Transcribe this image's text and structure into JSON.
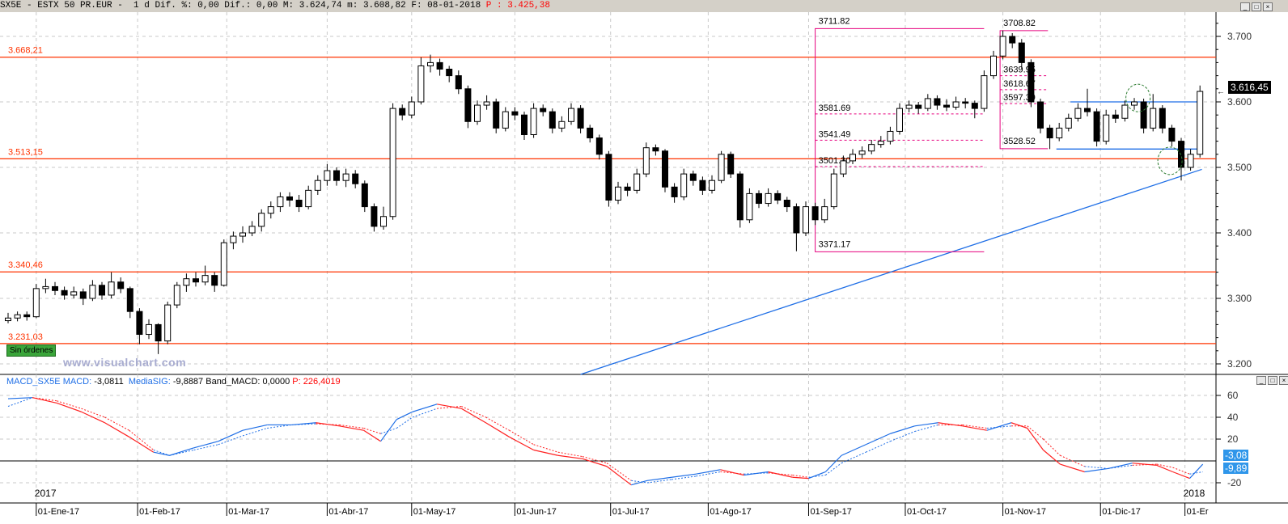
{
  "header": {
    "symbol": "SX5E",
    "sep1": " - ",
    "name": "ESTX 50 PR.EUR",
    "sep2": " -  ",
    "period": "1 d",
    "dif_pct_label": " Dif. %: ",
    "dif_pct": "0,00",
    "dif_label": " Dif.: ",
    "dif": "0,00",
    "max_label": " M: ",
    "max": "3.624,74",
    "min_label": " m: ",
    "min": "3.608,82",
    "date_label": " F: ",
    "date": "08-01-2018",
    "p_label": " P : ",
    "p": "3.425,38"
  },
  "window_controls": [
    "_",
    "□",
    "×"
  ],
  "price_axis": {
    "ticks": [
      3700,
      3600,
      3500,
      3400,
      3300,
      3200
    ],
    "tick_labels": [
      "3.700",
      "3.600",
      "3.500",
      "3.400",
      "3.300",
      "3.200"
    ],
    "range": [
      3180,
      3740
    ],
    "last_price": "3.616,45",
    "last_value": 3616.45
  },
  "levels": [
    {
      "price": 3668.21,
      "label": "3.668,21"
    },
    {
      "price": 3513.15,
      "label": "3.513,15"
    },
    {
      "price": 3340.46,
      "label": "3.340,46"
    },
    {
      "price": 3231.03,
      "label": "3.231,03"
    }
  ],
  "orders_badge": "Sin órdenes",
  "watermark": "www.visualchart.com",
  "date_axis": {
    "labels": [
      {
        "candle": 3,
        "text": "01-Ene-17"
      },
      {
        "candle": 13.8,
        "text": "01-Feb-17"
      },
      {
        "candle": 23.3,
        "text": "01-Mar-17"
      },
      {
        "candle": 34,
        "text": "01-Abr-17"
      },
      {
        "candle": 43,
        "text": "01-May-17"
      },
      {
        "candle": 54,
        "text": "01-Jun-17"
      },
      {
        "candle": 64.2,
        "text": "01-Jul-17"
      },
      {
        "candle": 74.6,
        "text": "01-Ago-17"
      },
      {
        "candle": 85.3,
        "text": "01-Sep-17"
      },
      {
        "candle": 95.6,
        "text": "01-Oct-17"
      },
      {
        "candle": 106,
        "text": "01-Nov-17"
      },
      {
        "candle": 116.4,
        "text": "01-Dic-17"
      },
      {
        "candle": 125.4,
        "text": "01-Er"
      }
    ],
    "years": [
      {
        "candle": 3,
        "text": "2017"
      },
      {
        "candle": 125.4,
        "text": "2018"
      }
    ]
  },
  "fib_boxes": [
    {
      "from": 86,
      "to": 104,
      "color": "#e6007e",
      "top": {
        "price": 3711.82,
        "label": "3711.82"
      },
      "bottom": {
        "price": 3371.17,
        "label": "3371.17"
      },
      "levels": [
        {
          "price": 3581.69,
          "label": "3581.69"
        },
        {
          "price": 3541.49,
          "label": "3541.49"
        },
        {
          "price": 3501.3,
          "label": "3501.30"
        }
      ]
    },
    {
      "from": 105.7,
      "to": 110.8,
      "color": "#e6007e",
      "top": {
        "price": 3708.82,
        "label": "3708.82"
      },
      "bottom": {
        "price": 3528.52,
        "label": "3528.52"
      },
      "levels": [
        {
          "price": 3639.95,
          "label": "3639.95"
        },
        {
          "price": 3618.67,
          "label": "3618.67"
        },
        {
          "price": 3597.39,
          "label": "3597.39"
        }
      ]
    }
  ],
  "trendlines": [
    {
      "from": {
        "candle": 61,
        "price": 3184
      },
      "to": {
        "candle": 127.2,
        "price": 3497
      },
      "color": "#1e6ee6"
    },
    {
      "from": {
        "candle": 113.2,
        "price": 3600
      },
      "to": {
        "candle": 127.2,
        "price": 3600
      },
      "color": "#1e6ee6"
    },
    {
      "from": {
        "candle": 111.7,
        "price": 3528
      },
      "to": {
        "candle": 127.2,
        "price": 3528
      },
      "color": "#1e6ee6"
    }
  ],
  "circles": [
    {
      "candle": 120.4,
      "price": 3606,
      "color": "#2e7d32"
    },
    {
      "candle": 123.8,
      "price": 3510,
      "color": "#2e7d32"
    }
  ],
  "colors": {
    "level": "#ff3300",
    "macd_up": "#1e6ee6",
    "macd_down": "#ff2020",
    "grid": "#c8c8c8"
  },
  "chart_data": [
    {
      "type": "candlestick",
      "title": "SX5E - ESTX 50 PR.EUR",
      "ylim": [
        3180,
        3740
      ],
      "grid": true,
      "candles_ohlc": [
        [
          3266,
          3278,
          3262,
          3270
        ],
        [
          3270,
          3280,
          3265,
          3275
        ],
        [
          3275,
          3280,
          3266,
          3272
        ],
        [
          3272,
          3322,
          3270,
          3315
        ],
        [
          3315,
          3330,
          3308,
          3318
        ],
        [
          3318,
          3325,
          3305,
          3312
        ],
        [
          3312,
          3318,
          3298,
          3305
        ],
        [
          3305,
          3318,
          3300,
          3310
        ],
        [
          3310,
          3315,
          3290,
          3300
        ],
        [
          3300,
          3328,
          3296,
          3320
        ],
        [
          3320,
          3325,
          3298,
          3305
        ],
        [
          3305,
          3340,
          3300,
          3325
        ],
        [
          3325,
          3332,
          3308,
          3315
        ],
        [
          3315,
          3318,
          3270,
          3280
        ],
        [
          3280,
          3285,
          3230,
          3245
        ],
        [
          3245,
          3268,
          3238,
          3260
        ],
        [
          3260,
          3262,
          3215,
          3235
        ],
        [
          3235,
          3295,
          3230,
          3290
        ],
        [
          3290,
          3325,
          3285,
          3320
        ],
        [
          3320,
          3338,
          3310,
          3330
        ],
        [
          3330,
          3340,
          3318,
          3325
        ],
        [
          3325,
          3350,
          3320,
          3335
        ],
        [
          3335,
          3340,
          3310,
          3320
        ],
        [
          3320,
          3390,
          3318,
          3385
        ],
        [
          3385,
          3402,
          3375,
          3395
        ],
        [
          3395,
          3410,
          3385,
          3400
        ],
        [
          3400,
          3418,
          3395,
          3410
        ],
        [
          3410,
          3436,
          3402,
          3430
        ],
        [
          3430,
          3448,
          3422,
          3440
        ],
        [
          3440,
          3462,
          3432,
          3455
        ],
        [
          3455,
          3462,
          3440,
          3450
        ],
        [
          3450,
          3458,
          3432,
          3440
        ],
        [
          3440,
          3472,
          3436,
          3465
        ],
        [
          3465,
          3488,
          3458,
          3480
        ],
        [
          3480,
          3505,
          3472,
          3495
        ],
        [
          3495,
          3500,
          3472,
          3480
        ],
        [
          3480,
          3498,
          3470,
          3490
        ],
        [
          3490,
          3496,
          3468,
          3475
        ],
        [
          3475,
          3480,
          3432,
          3440
        ],
        [
          3440,
          3445,
          3402,
          3410
        ],
        [
          3410,
          3440,
          3405,
          3425
        ],
        [
          3425,
          3598,
          3420,
          3590
        ],
        [
          3590,
          3596,
          3572,
          3580
        ],
        [
          3580,
          3608,
          3575,
          3600
        ],
        [
          3600,
          3668,
          3596,
          3655
        ],
        [
          3655,
          3672,
          3645,
          3660
        ],
        [
          3660,
          3666,
          3640,
          3650
        ],
        [
          3650,
          3655,
          3630,
          3640
        ],
        [
          3640,
          3648,
          3612,
          3620
        ],
        [
          3620,
          3625,
          3560,
          3570
        ],
        [
          3570,
          3602,
          3565,
          3595
        ],
        [
          3595,
          3610,
          3588,
          3600
        ],
        [
          3600,
          3605,
          3552,
          3560
        ],
        [
          3560,
          3592,
          3555,
          3585
        ],
        [
          3585,
          3592,
          3572,
          3580
        ],
        [
          3580,
          3585,
          3542,
          3550
        ],
        [
          3550,
          3598,
          3545,
          3590
        ],
        [
          3590,
          3596,
          3578,
          3585
        ],
        [
          3585,
          3590,
          3552,
          3560
        ],
        [
          3560,
          3578,
          3554,
          3570
        ],
        [
          3570,
          3598,
          3565,
          3590
        ],
        [
          3590,
          3595,
          3552,
          3560
        ],
        [
          3560,
          3565,
          3538,
          3545
        ],
        [
          3545,
          3550,
          3512,
          3520
        ],
        [
          3520,
          3525,
          3440,
          3450
        ],
        [
          3450,
          3478,
          3444,
          3470
        ],
        [
          3470,
          3476,
          3456,
          3465
        ],
        [
          3465,
          3498,
          3460,
          3490
        ],
        [
          3490,
          3538,
          3485,
          3530
        ],
        [
          3530,
          3535,
          3518,
          3525
        ],
        [
          3525,
          3528,
          3462,
          3470
        ],
        [
          3470,
          3476,
          3446,
          3455
        ],
        [
          3455,
          3498,
          3450,
          3490
        ],
        [
          3490,
          3495,
          3472,
          3480
        ],
        [
          3480,
          3486,
          3458,
          3465
        ],
        [
          3465,
          3488,
          3460,
          3480
        ],
        [
          3480,
          3525,
          3476,
          3520
        ],
        [
          3520,
          3524,
          3484,
          3490
        ],
        [
          3490,
          3494,
          3408,
          3420
        ],
        [
          3420,
          3468,
          3415,
          3460
        ],
        [
          3460,
          3465,
          3438,
          3445
        ],
        [
          3445,
          3468,
          3440,
          3460
        ],
        [
          3460,
          3465,
          3444,
          3450
        ],
        [
          3450,
          3455,
          3432,
          3440
        ],
        [
          3440,
          3445,
          3372,
          3400
        ],
        [
          3400,
          3448,
          3395,
          3440
        ],
        [
          3440,
          3446,
          3412,
          3420
        ],
        [
          3420,
          3452,
          3415,
          3440
        ],
        [
          3440,
          3498,
          3436,
          3490
        ],
        [
          3490,
          3518,
          3485,
          3510
        ],
        [
          3510,
          3528,
          3505,
          3520
        ],
        [
          3520,
          3532,
          3514,
          3525
        ],
        [
          3525,
          3542,
          3520,
          3535
        ],
        [
          3535,
          3548,
          3530,
          3540
        ],
        [
          3540,
          3562,
          3535,
          3555
        ],
        [
          3555,
          3598,
          3550,
          3590
        ],
        [
          3590,
          3602,
          3584,
          3595
        ],
        [
          3595,
          3600,
          3582,
          3590
        ],
        [
          3590,
          3612,
          3586,
          3605
        ],
        [
          3605,
          3610,
          3588,
          3595
        ],
        [
          3595,
          3604,
          3586,
          3592
        ],
        [
          3592,
          3608,
          3588,
          3600
        ],
        [
          3600,
          3606,
          3590,
          3598
        ],
        [
          3598,
          3602,
          3575,
          3590
        ],
        [
          3590,
          3648,
          3585,
          3640
        ],
        [
          3640,
          3678,
          3635,
          3670
        ],
        [
          3670,
          3709,
          3665,
          3700
        ],
        [
          3700,
          3705,
          3682,
          3690
        ],
        [
          3690,
          3696,
          3650,
          3660
        ],
        [
          3660,
          3665,
          3592,
          3600
        ],
        [
          3600,
          3605,
          3552,
          3560
        ],
        [
          3560,
          3565,
          3528,
          3545
        ],
        [
          3545,
          3568,
          3540,
          3560
        ],
        [
          3560,
          3582,
          3555,
          3575
        ],
        [
          3575,
          3598,
          3570,
          3590
        ],
        [
          3590,
          3620,
          3578,
          3585
        ],
        [
          3585,
          3590,
          3532,
          3540
        ],
        [
          3540,
          3588,
          3535,
          3580
        ],
        [
          3580,
          3588,
          3568,
          3575
        ],
        [
          3575,
          3602,
          3570,
          3595
        ],
        [
          3595,
          3606,
          3588,
          3600
        ],
        [
          3600,
          3605,
          3552,
          3560
        ],
        [
          3560,
          3612,
          3555,
          3590
        ],
        [
          3590,
          3595,
          3552,
          3560
        ],
        [
          3560,
          3565,
          3532,
          3540
        ],
        [
          3540,
          3545,
          3480,
          3500
        ],
        [
          3500,
          3528,
          3495,
          3520
        ],
        [
          3520,
          3625,
          3515,
          3616
        ]
      ]
    },
    {
      "type": "line",
      "title": "MACD_SX5E",
      "ylim": [
        -25,
        68
      ],
      "ticks": [
        60,
        40,
        20,
        -20
      ],
      "tick_labels": [
        "60",
        "40",
        "20",
        "-20"
      ],
      "legend": {
        "name": "MACD_SX5E",
        "macd_label": "MACD: ",
        "macd": "-3,0811",
        "sig_label": "MediaSIG: ",
        "sig": "-9,8887",
        "band_label": "Band_MACD: ",
        "band": "0,0000",
        "p_label": "P: ",
        "p": "226,4019"
      },
      "last_macd": "-3,08",
      "last_sig": "-9,89",
      "points_candle_macd_signal": [
        [
          0,
          57,
          50
        ],
        [
          2.6,
          58,
          58
        ],
        [
          5.2,
          53,
          55
        ],
        [
          7.8,
          45,
          48
        ],
        [
          10.3,
          35,
          40
        ],
        [
          12.9,
          22,
          28
        ],
        [
          15.5,
          8,
          10
        ],
        [
          17.2,
          5,
          5
        ],
        [
          19.8,
          12,
          10
        ],
        [
          22.4,
          18,
          15
        ],
        [
          25,
          28,
          23
        ],
        [
          27.6,
          33,
          30
        ],
        [
          30.2,
          33,
          33
        ],
        [
          32.8,
          35,
          34
        ],
        [
          35.3,
          32,
          33
        ],
        [
          37.9,
          28,
          30
        ],
        [
          39.7,
          18,
          25
        ],
        [
          41.4,
          38,
          30
        ],
        [
          43.1,
          45,
          40
        ],
        [
          45.7,
          52,
          48
        ],
        [
          48.3,
          48,
          50
        ],
        [
          50.9,
          35,
          40
        ],
        [
          53.4,
          22,
          28
        ],
        [
          56,
          10,
          15
        ],
        [
          58.6,
          5,
          8
        ],
        [
          61.2,
          2,
          4
        ],
        [
          63.8,
          -5,
          -2
        ],
        [
          66.4,
          -22,
          -18
        ],
        [
          68.1,
          -18,
          -20
        ],
        [
          70.7,
          -15,
          -17
        ],
        [
          73.3,
          -12,
          -14
        ],
        [
          75.9,
          -8,
          -10
        ],
        [
          78.4,
          -13,
          -12
        ],
        [
          81,
          -10,
          -11
        ],
        [
          83.6,
          -15,
          -13
        ],
        [
          85.3,
          -16,
          -15
        ],
        [
          87.1,
          -10,
          -13
        ],
        [
          88.8,
          5,
          -2
        ],
        [
          91.4,
          15,
          8
        ],
        [
          94,
          25,
          18
        ],
        [
          96.6,
          32,
          27
        ],
        [
          99.1,
          35,
          33
        ],
        [
          101.7,
          32,
          33
        ],
        [
          104.3,
          28,
          30
        ],
        [
          106.9,
          35,
          32
        ],
        [
          108.6,
          30,
          32
        ],
        [
          110.3,
          10,
          20
        ],
        [
          112.1,
          -3,
          5
        ],
        [
          114.7,
          -10,
          -5
        ],
        [
          117.2,
          -7,
          -7
        ],
        [
          119.8,
          -2,
          -4
        ],
        [
          122.4,
          -4,
          -3
        ],
        [
          124.1,
          -10,
          -6
        ],
        [
          125.9,
          -16,
          -12
        ],
        [
          127.3,
          -3,
          -10
        ]
      ]
    }
  ]
}
